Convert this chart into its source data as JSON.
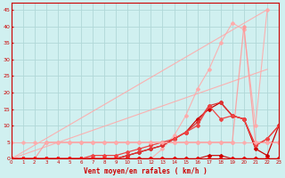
{
  "xlabel": "Vent moyen/en rafales ( km/h )",
  "xlim": [
    0,
    23
  ],
  "ylim": [
    0,
    47
  ],
  "yticks": [
    0,
    5,
    10,
    15,
    20,
    25,
    30,
    35,
    40,
    45
  ],
  "xticks": [
    0,
    1,
    2,
    3,
    4,
    5,
    6,
    7,
    8,
    9,
    10,
    11,
    12,
    13,
    14,
    15,
    16,
    17,
    18,
    19,
    20,
    21,
    22,
    23
  ],
  "background_color": "#d0f0f0",
  "grid_color": "#b0d8d8",
  "lines": [
    {
      "x": [
        0,
        22
      ],
      "y": [
        0,
        45
      ],
      "color": "#ffaaaa",
      "alpha": 0.9,
      "lw": 0.8,
      "marker": null
    },
    {
      "x": [
        0,
        22
      ],
      "y": [
        0,
        27
      ],
      "color": "#ffaaaa",
      "alpha": 0.9,
      "lw": 0.8,
      "marker": null
    },
    {
      "x": [
        0,
        1,
        2,
        3,
        4,
        5,
        6,
        7,
        8,
        9,
        10,
        11,
        12,
        13,
        14,
        15,
        16,
        17,
        18,
        19,
        20,
        21,
        22
      ],
      "y": [
        0,
        0,
        0,
        0,
        0,
        0,
        0,
        0,
        0,
        0,
        0,
        0,
        0,
        3,
        7,
        13,
        21,
        27,
        35,
        41,
        39,
        10,
        45
      ],
      "color": "#ffaaaa",
      "alpha": 0.9,
      "lw": 0.8,
      "marker": "D",
      "ms": 2
    },
    {
      "x": [
        0,
        1,
        2,
        3,
        4,
        5,
        6,
        7,
        8,
        9,
        10,
        11,
        12,
        13,
        14,
        15,
        16,
        17,
        18,
        19,
        20,
        21,
        22,
        23
      ],
      "y": [
        0,
        0,
        0,
        5,
        5,
        5,
        5,
        5,
        5,
        5,
        5,
        5,
        5,
        5,
        5,
        5,
        5,
        5,
        5,
        5,
        40,
        5,
        5,
        5
      ],
      "color": "#ff9999",
      "alpha": 0.85,
      "lw": 0.9,
      "marker": "D",
      "ms": 2
    },
    {
      "x": [
        0,
        1,
        2,
        3,
        4,
        5,
        6,
        7,
        8,
        9,
        10,
        11,
        12,
        13,
        14,
        15,
        16,
        17,
        18,
        19,
        20,
        21,
        22,
        23
      ],
      "y": [
        0,
        0,
        0,
        0,
        0,
        0,
        0,
        0,
        0,
        0,
        0,
        0,
        0,
        0,
        0,
        0,
        0,
        1,
        1,
        0,
        0,
        0,
        0,
        0
      ],
      "color": "#cc0000",
      "alpha": 1.0,
      "lw": 0.8,
      "marker": "D",
      "ms": 2
    },
    {
      "x": [
        0,
        1,
        2,
        3,
        4,
        5,
        6,
        7,
        8,
        9,
        10,
        11,
        12,
        13,
        14,
        15,
        16,
        17,
        18,
        19,
        20,
        21,
        22,
        23
      ],
      "y": [
        0,
        0,
        0,
        0,
        0,
        0,
        0,
        0,
        0,
        0,
        1,
        2,
        3,
        4,
        6,
        8,
        12,
        15,
        17,
        13,
        12,
        3,
        1,
        10
      ],
      "color": "#cc0000",
      "alpha": 1.0,
      "lw": 0.9,
      "marker": "D",
      "ms": 2
    },
    {
      "x": [
        0,
        1,
        2,
        3,
        4,
        5,
        6,
        7,
        8,
        9,
        10,
        11,
        12,
        13,
        14,
        15,
        16,
        17,
        18,
        19,
        20,
        21,
        22,
        23
      ],
      "y": [
        0,
        0,
        0,
        0,
        0,
        0,
        0,
        0,
        0,
        0,
        1,
        2,
        3,
        4,
        6,
        8,
        11,
        16,
        17,
        13,
        12,
        4,
        6,
        10
      ],
      "color": "#dd3333",
      "alpha": 1.0,
      "lw": 0.9,
      "marker": "D",
      "ms": 2
    },
    {
      "x": [
        0,
        1,
        2,
        3,
        4,
        5,
        6,
        7,
        8,
        9,
        10,
        11,
        12,
        13,
        14,
        15,
        16,
        17,
        18,
        19,
        20,
        21,
        22,
        23
      ],
      "y": [
        0,
        0,
        0,
        0,
        0,
        0,
        0,
        1,
        1,
        1,
        2,
        3,
        4,
        5,
        6,
        8,
        10,
        16,
        12,
        13,
        12,
        4,
        6,
        10
      ],
      "color": "#ee4444",
      "alpha": 1.0,
      "lw": 0.9,
      "marker": "D",
      "ms": 2
    },
    {
      "x": [
        0,
        1,
        2,
        3,
        4,
        5,
        6,
        7,
        8,
        9,
        10,
        11,
        12,
        13,
        14,
        15,
        16,
        17,
        18,
        19,
        20,
        21,
        22,
        23
      ],
      "y": [
        0,
        0,
        0,
        0,
        0,
        0,
        0,
        0,
        0,
        0,
        0,
        0,
        0,
        0,
        0,
        0,
        0,
        0,
        0,
        0,
        0,
        0,
        0,
        0
      ],
      "color": "#ff0000",
      "alpha": 1.0,
      "lw": 0.8,
      "marker": ">",
      "ms": 2
    },
    {
      "x": [
        0,
        1,
        2,
        3,
        4,
        5,
        6,
        7,
        8,
        9,
        10,
        11,
        12,
        13,
        14,
        15,
        16,
        17,
        18,
        19,
        20,
        21,
        22,
        23
      ],
      "y": [
        5,
        5,
        5,
        5,
        5,
        5,
        5,
        5,
        5,
        5,
        5,
        5,
        5,
        5,
        5,
        5,
        5,
        5,
        5,
        5,
        5,
        5,
        5,
        5
      ],
      "color": "#ffaaaa",
      "alpha": 0.8,
      "lw": 0.8,
      "marker": "D",
      "ms": 2
    }
  ]
}
